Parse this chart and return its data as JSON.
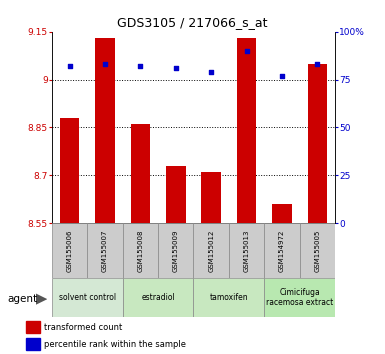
{
  "title": "GDS3105 / 217066_s_at",
  "samples": [
    "GSM155006",
    "GSM155007",
    "GSM155008",
    "GSM155009",
    "GSM155012",
    "GSM155013",
    "GSM154972",
    "GSM155005"
  ],
  "red_values": [
    8.88,
    9.13,
    8.86,
    8.73,
    8.71,
    9.13,
    8.61,
    9.05
  ],
  "blue_values": [
    82,
    83,
    82,
    81,
    79,
    90,
    77,
    83
  ],
  "ylim_left": [
    8.55,
    9.15
  ],
  "ylim_right": [
    0,
    100
  ],
  "yticks_left": [
    8.55,
    8.7,
    8.85,
    9.0,
    9.15
  ],
  "yticks_right": [
    0,
    25,
    50,
    75,
    100
  ],
  "ytick_labels_left": [
    "8.55",
    "8.7",
    "8.85",
    "9",
    "9.15"
  ],
  "ytick_labels_right": [
    "0",
    "25",
    "50",
    "75",
    "100%"
  ],
  "hlines": [
    9.0,
    8.85,
    8.7
  ],
  "bar_color": "#cc0000",
  "dot_color": "#0000cc",
  "groups": [
    {
      "label": "solvent control",
      "start": 0,
      "end": 2,
      "color": "#d4e8d4"
    },
    {
      "label": "estradiol",
      "start": 2,
      "end": 4,
      "color": "#c8e8c0"
    },
    {
      "label": "tamoxifen",
      "start": 4,
      "end": 6,
      "color": "#c8e8c0"
    },
    {
      "label": "Cimicifuga\nracemosa extract",
      "start": 6,
      "end": 8,
      "color": "#b8e8b0"
    }
  ],
  "agent_label": "agent",
  "legend_red": "transformed count",
  "legend_blue": "percentile rank within the sample",
  "bar_width": 0.55,
  "base_value": 8.55,
  "dot_size": 12,
  "title_fontsize": 9,
  "tick_fontsize": 6.5,
  "sample_fontsize": 5.0,
  "group_fontsize": 5.5,
  "legend_fontsize": 6.0,
  "agent_fontsize": 7.5
}
